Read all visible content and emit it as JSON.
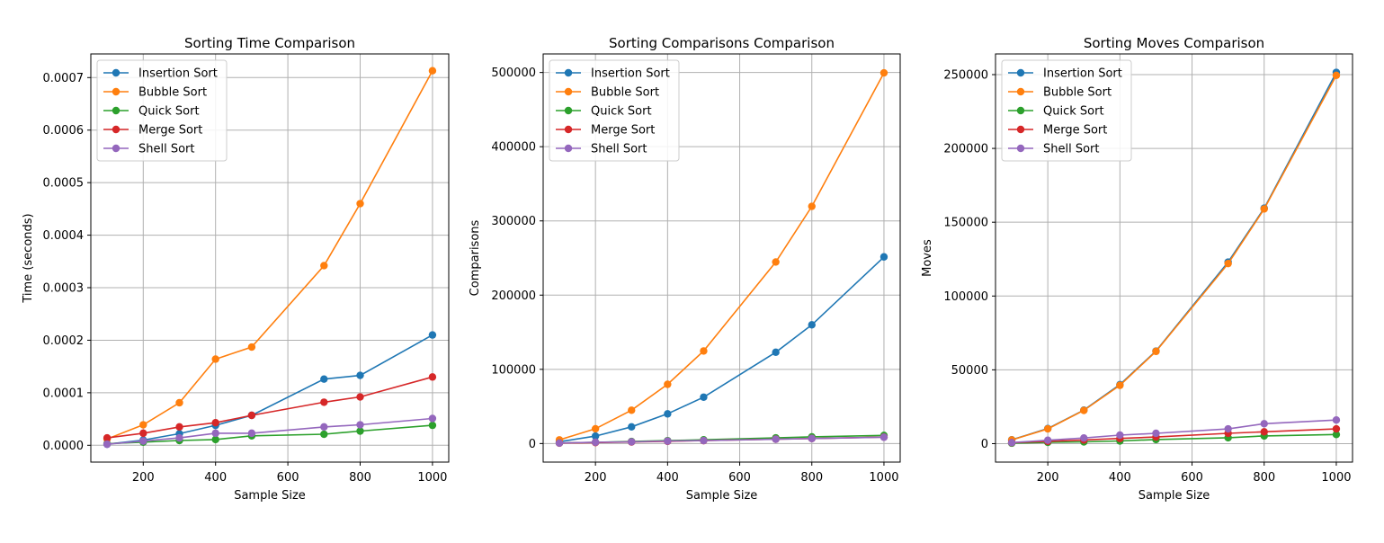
{
  "series_colors": {
    "Insertion Sort": "#1f77b4",
    "Bubble Sort": "#ff7f0e",
    "Quick Sort": "#2ca02c",
    "Merge Sort": "#d62728",
    "Shell Sort": "#9467bd"
  },
  "chart_data": [
    {
      "type": "line",
      "title": "Sorting Time Comparison",
      "xlabel": "Sample Size",
      "ylabel": "Time (seconds)",
      "xlim": [
        55,
        1045
      ],
      "ylim": [
        -3.2e-05,
        0.000745
      ],
      "xticks": [
        200,
        400,
        600,
        800,
        1000
      ],
      "xtick_labels": [
        "200",
        "400",
        "600",
        "800",
        "1000"
      ],
      "yticks": [
        0,
        0.0001,
        0.0002,
        0.0003,
        0.0004,
        0.0005,
        0.0006,
        0.0007
      ],
      "ytick_labels": [
        "0.0000",
        "0.0001",
        "0.0002",
        "0.0003",
        "0.0004",
        "0.0005",
        "0.0006",
        "0.0007"
      ],
      "grid": true,
      "legend": "upper-left",
      "x": [
        100,
        200,
        300,
        400,
        500,
        700,
        800,
        1000
      ],
      "series": [
        {
          "name": "Insertion Sort",
          "values": [
            2e-06,
            1e-05,
            2.2e-05,
            3.8e-05,
            5.7e-05,
            0.000126,
            0.000133,
            0.00021
          ]
        },
        {
          "name": "Bubble Sort",
          "values": [
            1.2e-05,
            3.9e-05,
            8.1e-05,
            0.000164,
            0.000187,
            0.000342,
            0.00046,
            0.000713
          ]
        },
        {
          "name": "Quick Sort",
          "values": [
            3e-06,
            6e-06,
            9e-06,
            1.1e-05,
            1.8e-05,
            2.1e-05,
            2.7e-05,
            3.8e-05
          ]
        },
        {
          "name": "Merge Sort",
          "values": [
            1.4e-05,
            2.3e-05,
            3.5e-05,
            4.3e-05,
            5.7e-05,
            8.2e-05,
            9.2e-05,
            0.00013
          ]
        },
        {
          "name": "Shell Sort",
          "values": [
            2e-06,
            8e-06,
            1.4e-05,
            2.3e-05,
            2.3e-05,
            3.5e-05,
            3.9e-05,
            5.1e-05
          ]
        }
      ]
    },
    {
      "type": "line",
      "title": "Sorting Comparisons Comparison",
      "xlabel": "Sample Size",
      "ylabel": "Comparisons",
      "xlim": [
        55,
        1045
      ],
      "ylim": [
        -25000,
        525000
      ],
      "xticks": [
        200,
        400,
        600,
        800,
        1000
      ],
      "xtick_labels": [
        "200",
        "400",
        "600",
        "800",
        "1000"
      ],
      "yticks": [
        0,
        100000,
        200000,
        300000,
        400000,
        500000
      ],
      "ytick_labels": [
        "0",
        "100000",
        "200000",
        "300000",
        "400000",
        "500000"
      ],
      "grid": true,
      "legend": "upper-left",
      "x": [
        100,
        200,
        300,
        400,
        500,
        700,
        800,
        1000
      ],
      "series": [
        {
          "name": "Insertion Sort",
          "values": [
            2500,
            10000,
            22500,
            40000,
            62500,
            123000,
            160000,
            251500
          ]
        },
        {
          "name": "Bubble Sort",
          "values": [
            4950,
            19900,
            44850,
            79800,
            124750,
            244650,
            319600,
            499500
          ]
        },
        {
          "name": "Quick Sort",
          "values": [
            700,
            1700,
            2800,
            3900,
            5000,
            7600,
            9000,
            11000
          ]
        },
        {
          "name": "Merge Sort",
          "values": [
            550,
            1300,
            2100,
            3000,
            3900,
            5900,
            6800,
            8700
          ]
        },
        {
          "name": "Shell Sort",
          "values": [
            700,
            1800,
            2300,
            3300,
            4000,
            5800,
            6800,
            8500
          ]
        }
      ]
    },
    {
      "type": "line",
      "title": "Sorting Moves Comparison",
      "xlabel": "Sample Size",
      "ylabel": "Moves",
      "xlim": [
        55,
        1045
      ],
      "ylim": [
        -12500,
        264000
      ],
      "xticks": [
        200,
        400,
        600,
        800,
        1000
      ],
      "xtick_labels": [
        "200",
        "400",
        "600",
        "800",
        "1000"
      ],
      "yticks": [
        0,
        50000,
        100000,
        150000,
        200000,
        250000
      ],
      "ytick_labels": [
        "0",
        "50000",
        "100000",
        "150000",
        "200000",
        "250000"
      ],
      "grid": true,
      "legend": "upper-left",
      "x": [
        100,
        200,
        300,
        400,
        500,
        700,
        800,
        1000
      ],
      "series": [
        {
          "name": "Insertion Sort",
          "values": [
            2600,
            10200,
            22700,
            40000,
            62700,
            123000,
            159500,
            251500
          ]
        },
        {
          "name": "Bubble Sort",
          "values": [
            2500,
            10000,
            22500,
            39500,
            62500,
            122000,
            159000,
            249500
          ]
        },
        {
          "name": "Quick Sort",
          "values": [
            300,
            900,
            1200,
            1800,
            2800,
            4000,
            5200,
            6200
          ]
        },
        {
          "name": "Merge Sort",
          "values": [
            670,
            1550,
            2500,
            3500,
            4500,
            7000,
            8000,
            10000
          ]
        },
        {
          "name": "Shell Sort",
          "values": [
            700,
            2300,
            3800,
            5800,
            7000,
            10000,
            13500,
            16000
          ]
        }
      ]
    }
  ]
}
